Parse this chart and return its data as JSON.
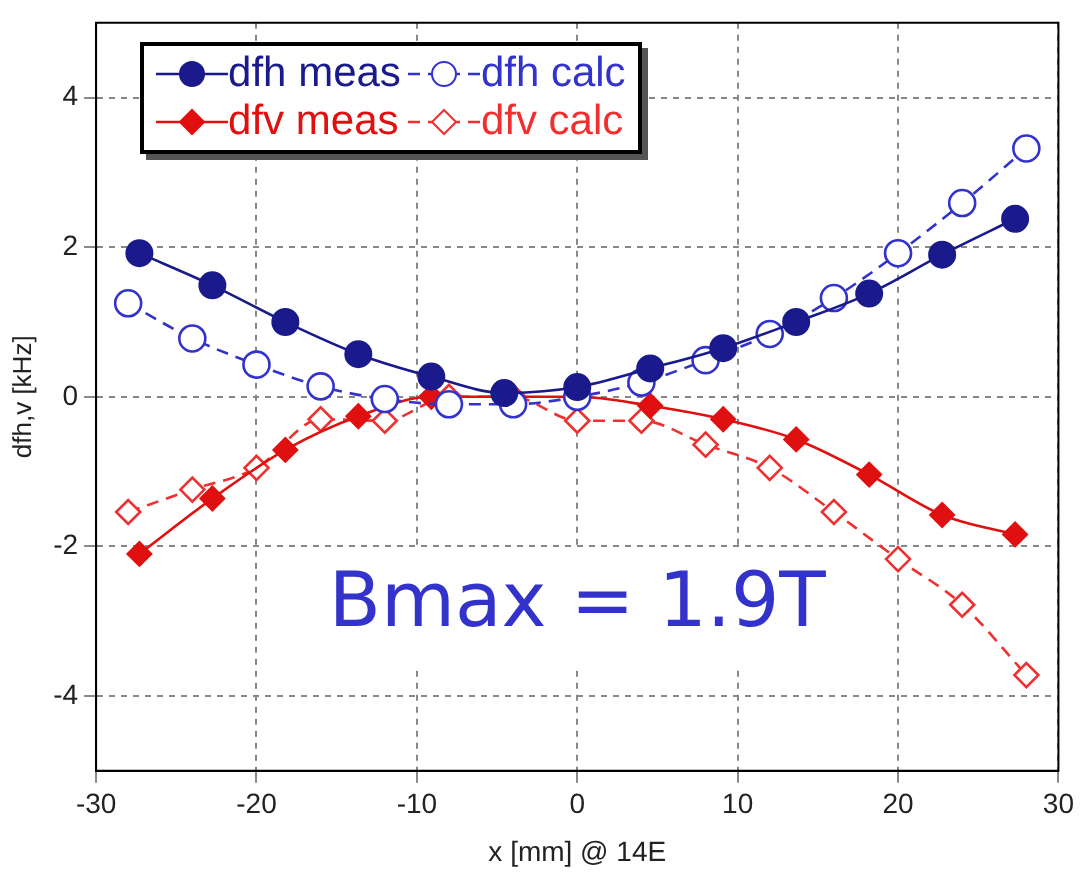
{
  "chart_data": {
    "type": "line",
    "marker": "circle",
    "xlabel": "x [mm] @ 14E",
    "ylabel": "dfh,v [kHz]",
    "xlim": [
      -30,
      30
    ],
    "ylim": [
      -5,
      5
    ],
    "xticks": [
      -30,
      -20,
      -10,
      0,
      10,
      20,
      30
    ],
    "yticks": [
      -4,
      -2,
      0,
      2,
      4
    ],
    "grid": true,
    "legend": "top left",
    "annotations": [
      "Bmax = 1.9T"
    ],
    "series": [
      {
        "name": "dfh meas",
        "color": "#1a1a8c",
        "line_style": "solid",
        "x": [
          -27.3,
          -22.75,
          -18.2,
          -13.65,
          -9.1,
          -4.55,
          0,
          4.55,
          9.1,
          13.65,
          18.2,
          22.75,
          27.3
        ],
        "values": [
          1.92,
          1.49,
          1.0,
          0.57,
          0.27,
          0.05,
          0.13,
          0.38,
          0.65,
          1.0,
          1.38,
          1.9,
          2.38
        ]
      },
      {
        "name": "dfh calc",
        "color": "#3333cc",
        "line_style": "dashed",
        "x": [
          -28,
          -24,
          -20,
          -16,
          -12,
          -8,
          -4,
          0,
          4,
          8,
          12,
          16,
          20,
          24,
          28
        ],
        "values": [
          1.25,
          0.78,
          0.43,
          0.14,
          -0.03,
          -0.1,
          -0.1,
          0.0,
          0.19,
          0.49,
          0.84,
          1.32,
          1.92,
          2.59,
          3.32
        ]
      },
      {
        "name": "dfv meas",
        "color": "#e01010",
        "marker": "diamond",
        "line_style": "solid",
        "x": [
          -27.3,
          -22.75,
          -18.2,
          -13.65,
          -9.1,
          -4.55,
          0,
          4.55,
          9.1,
          13.65,
          18.2,
          22.75,
          27.3
        ],
        "values": [
          -2.1,
          -1.36,
          -0.71,
          -0.26,
          0.0,
          0.0,
          0.0,
          -0.12,
          -0.3,
          -0.57,
          -1.04,
          -1.58,
          -1.84
        ]
      },
      {
        "name": "dfv calc",
        "color": "#f03030",
        "marker": "diamond",
        "line_style": "dashed",
        "x": [
          -28,
          -24,
          -20,
          -16,
          -12,
          -8,
          -4,
          0,
          4,
          8,
          12,
          16,
          20,
          24,
          28
        ],
        "values": [
          -1.54,
          -1.24,
          -0.95,
          -0.3,
          -0.32,
          0.0,
          0.0,
          -0.32,
          -0.32,
          -0.64,
          -0.95,
          -1.54,
          -2.17,
          -2.78,
          -3.72
        ]
      }
    ]
  }
}
